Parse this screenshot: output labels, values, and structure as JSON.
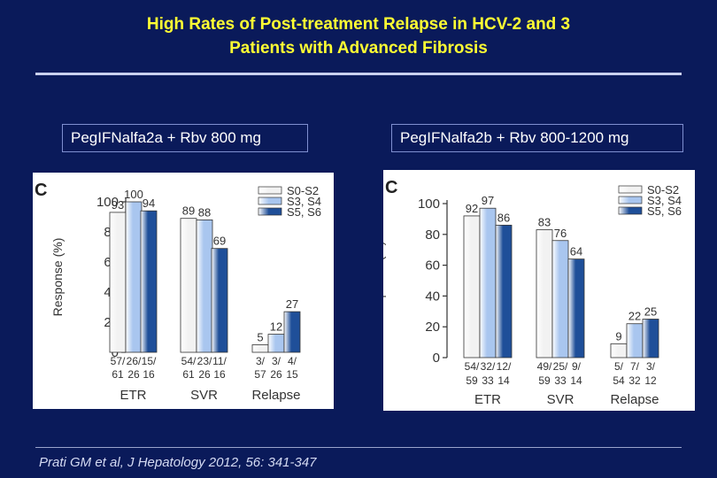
{
  "slide": {
    "title_line1": "High Rates of Post-treatment Relapse in HCV-2 and 3",
    "title_line2": "Patients with Advanced Fibrosis",
    "citation": "Prati GM et al, J Hepatology 2012, 56: 341-347"
  },
  "colors": {
    "background": "#0a1a5a",
    "title": "#ffff33",
    "series": [
      "#f2f2f2",
      "#a9c6ef",
      "#1f4f99"
    ]
  },
  "chart_data": [
    {
      "type": "bar",
      "header": "PegIFNalfa2a + Rbv 800 mg",
      "panel_letter": "C",
      "ylabel": "Response (%)",
      "ylim": [
        0,
        100
      ],
      "yticks": [
        0,
        20,
        40,
        60,
        80,
        100
      ],
      "categories": [
        "ETR",
        "SVR",
        "Relapse"
      ],
      "legend_position": "top-right",
      "series": [
        {
          "name": "S0-S2",
          "values": [
            93,
            89,
            5
          ],
          "counts": [
            "57/ 61",
            "54/ 61",
            "3/ 57"
          ]
        },
        {
          "name": "S3, S4",
          "values": [
            100,
            88,
            12
          ],
          "counts": [
            "26/ 26",
            "23/ 26",
            "3/ 26"
          ]
        },
        {
          "name": "S5, S6",
          "values": [
            94,
            69,
            27
          ],
          "counts": [
            "15/ 16",
            "11/ 16",
            "4/ 15"
          ]
        }
      ]
    },
    {
      "type": "bar",
      "header": "PegIFNalfa2b + Rbv 800-1200 mg",
      "panel_letter": "C",
      "ylabel": "Response (%)",
      "ylim": [
        0,
        100
      ],
      "yticks": [
        0,
        20,
        40,
        60,
        80,
        100
      ],
      "categories": [
        "ETR",
        "SVR",
        "Relapse"
      ],
      "legend_position": "top-right",
      "series": [
        {
          "name": "S0-S2",
          "values": [
            92,
            83,
            9
          ],
          "counts": [
            "54/ 59",
            "49/ 59",
            "5/ 54"
          ]
        },
        {
          "name": "S3, S4",
          "values": [
            97,
            76,
            22
          ],
          "counts": [
            "32/ 33",
            "25/ 33",
            "7/ 32"
          ]
        },
        {
          "name": "S5, S6",
          "values": [
            86,
            64,
            25
          ],
          "counts": [
            "12/ 14",
            "9/ 14",
            "3/ 12"
          ]
        }
      ]
    }
  ]
}
